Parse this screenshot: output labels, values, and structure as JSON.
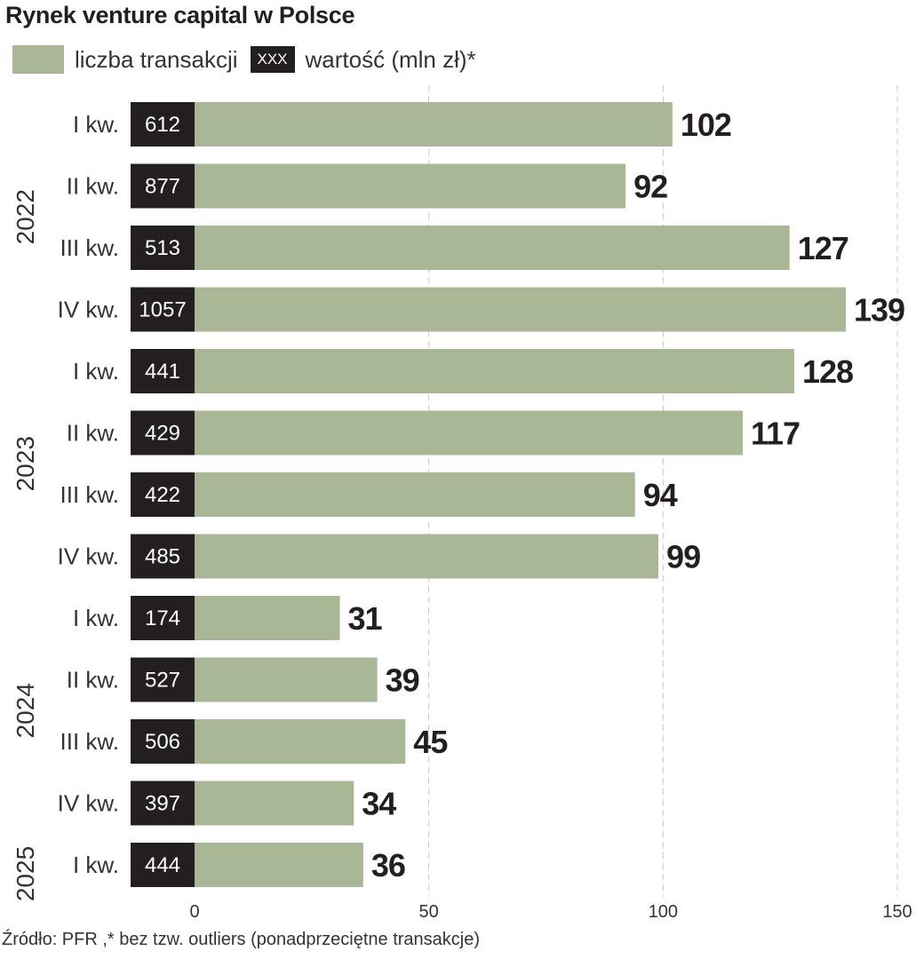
{
  "title": "Rynek venture capital w Polsce",
  "legend": {
    "count_label": "liczba transakcji",
    "value_swatch": "XXX",
    "value_label": "wartość (mln zł)*"
  },
  "source": "Źródło: PFR ,* bez tzw. outliers (ponadprzeciętne transakcje)",
  "colors": {
    "bar": "#aab796",
    "value_box": "#231f20",
    "text": "#231f20",
    "grid": "#c8c8c8"
  },
  "chart_data": {
    "type": "bar",
    "orientation": "horizontal",
    "categories": [
      "I kw.",
      "II kw.",
      "III kw.",
      "IV kw.",
      "I kw.",
      "II kw.",
      "III kw.",
      "IV kw.",
      "I kw.",
      "II kw.",
      "III kw.",
      "IV kw.",
      "I kw."
    ],
    "groups": [
      {
        "label": "2022",
        "count": 4
      },
      {
        "label": "2023",
        "count": 4
      },
      {
        "label": "2024",
        "count": 4
      },
      {
        "label": "2025",
        "count": 1
      }
    ],
    "series": [
      {
        "name": "liczba transakcji",
        "values": [
          102,
          92,
          127,
          139,
          128,
          117,
          94,
          99,
          31,
          39,
          45,
          34,
          36
        ]
      },
      {
        "name": "wartość (mln zł)*",
        "values": [
          612,
          877,
          513,
          1057,
          441,
          429,
          422,
          485,
          174,
          527,
          506,
          397,
          444
        ]
      }
    ],
    "xlim": [
      0,
      150
    ],
    "xticks": [
      0,
      50,
      100,
      150
    ],
    "grid": true
  }
}
